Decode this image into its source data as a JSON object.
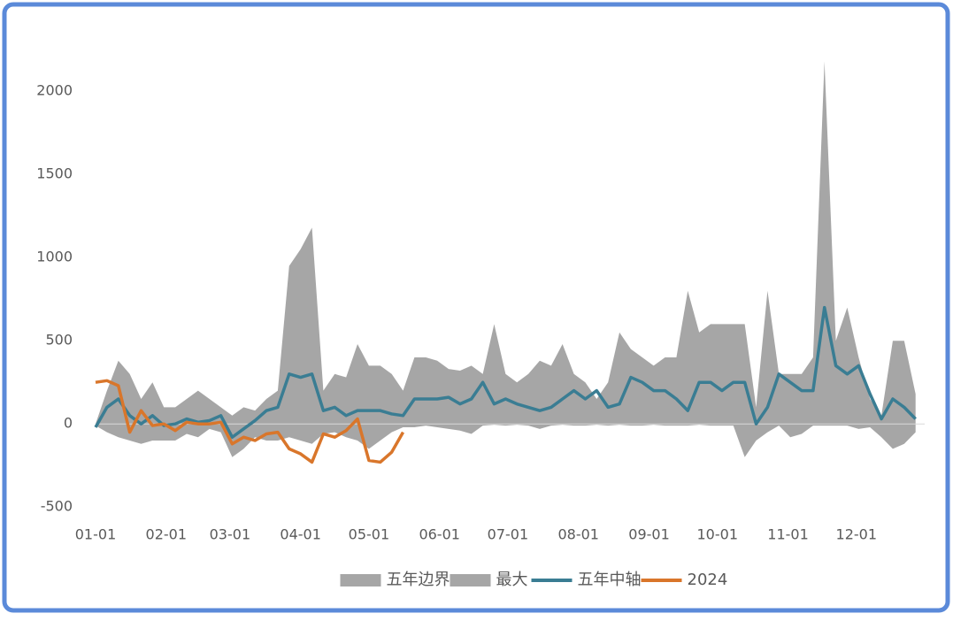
{
  "chart_data": {
    "type": "area-line",
    "x": [
      0,
      5,
      10,
      15,
      20,
      25,
      30,
      35,
      40,
      45,
      50,
      55,
      60,
      65,
      70,
      75,
      80,
      85,
      90,
      95,
      100,
      105,
      110,
      115,
      120,
      125,
      130,
      135,
      140,
      145,
      150,
      155,
      160,
      165,
      170,
      175,
      180,
      185,
      190,
      195,
      200,
      205,
      210,
      215,
      220,
      225,
      230,
      235,
      240,
      245,
      250,
      255,
      260,
      265,
      270,
      275,
      280,
      285,
      290,
      295,
      300,
      305,
      310,
      315,
      320,
      325,
      330,
      335,
      340,
      345,
      350,
      355,
      360
    ],
    "xlim": [
      0,
      364
    ],
    "xticks": [
      {
        "value": 0,
        "label": "01-01"
      },
      {
        "value": 31,
        "label": "02-01"
      },
      {
        "value": 59,
        "label": "03-01"
      },
      {
        "value": 90,
        "label": "04-01"
      },
      {
        "value": 120,
        "label": "05-01"
      },
      {
        "value": 151,
        "label": "06-01"
      },
      {
        "value": 181,
        "label": "07-01"
      },
      {
        "value": 212,
        "label": "08-01"
      },
      {
        "value": 243,
        "label": "09-01"
      },
      {
        "value": 273,
        "label": "10-01"
      },
      {
        "value": 304,
        "label": "11-01"
      },
      {
        "value": 334,
        "label": "12-01"
      }
    ],
    "ylim": [
      -600,
      2400
    ],
    "yticks": [
      -500,
      0,
      500,
      1000,
      1500,
      2000
    ],
    "legend": "bottom",
    "series": [
      {
        "name": "五年边界",
        "kind": "area",
        "color": "#a6a6a6",
        "values": [
          -10,
          -50,
          -80,
          -100,
          -120,
          -100,
          -100,
          -100,
          -60,
          -80,
          -30,
          -50,
          -200,
          -150,
          -80,
          -100,
          -100,
          -80,
          -100,
          -120,
          -60,
          -50,
          -80,
          -100,
          -150,
          -100,
          -50,
          -20,
          -20,
          -10,
          -20,
          -30,
          -40,
          -60,
          -10,
          -5,
          -10,
          -5,
          -10,
          -30,
          -10,
          -5,
          -10,
          -10,
          -5,
          -10,
          -5,
          -10,
          -10,
          -5,
          -10,
          -10,
          -10,
          -5,
          -10,
          -10,
          -10,
          -200,
          -100,
          -50,
          -10,
          -80,
          -60,
          -10,
          -10,
          -10,
          -10,
          -30,
          -20,
          -80,
          -150,
          -120,
          -50
        ]
      },
      {
        "name": "最大",
        "kind": "area",
        "color": "#a6a6a6",
        "values": [
          0,
          200,
          380,
          300,
          150,
          250,
          100,
          100,
          150,
          200,
          150,
          100,
          50,
          100,
          80,
          150,
          200,
          950,
          1050,
          1180,
          200,
          300,
          280,
          480,
          350,
          350,
          300,
          200,
          400,
          400,
          380,
          330,
          320,
          350,
          300,
          600,
          300,
          250,
          300,
          380,
          350,
          480,
          300,
          250,
          150,
          250,
          550,
          450,
          400,
          350,
          400,
          400,
          800,
          550,
          600,
          600,
          600,
          600,
          100,
          800,
          300,
          300,
          300,
          400,
          2180,
          500,
          700,
          400,
          150,
          50,
          500,
          500,
          180
        ]
      },
      {
        "name": "五年中轴",
        "kind": "line",
        "color": "#3a7d93",
        "values": [
          -20,
          100,
          150,
          50,
          0,
          50,
          -10,
          0,
          30,
          10,
          20,
          50,
          -80,
          -30,
          20,
          80,
          100,
          300,
          280,
          300,
          80,
          100,
          50,
          80,
          80,
          80,
          60,
          50,
          150,
          150,
          150,
          160,
          120,
          150,
          250,
          120,
          150,
          120,
          100,
          80,
          100,
          150,
          200,
          150,
          200,
          100,
          120,
          280,
          250,
          200,
          200,
          150,
          80,
          250,
          250,
          200,
          250,
          250,
          0,
          100,
          300,
          250,
          200,
          200,
          700,
          350,
          300,
          350,
          180,
          30,
          150,
          100,
          30
        ]
      },
      {
        "name": "2024",
        "kind": "line",
        "color": "#d9762b",
        "values": [
          250,
          260,
          230,
          -50,
          80,
          -10,
          0,
          -40,
          10,
          0,
          0,
          10,
          -120,
          -80,
          -100,
          -60,
          -50,
          -150,
          -180,
          -230,
          -60,
          -80,
          -40,
          30,
          -220,
          -230,
          -170,
          -50,
          null,
          null,
          null,
          null,
          null,
          null,
          null,
          null,
          null,
          null,
          null,
          null,
          null,
          null,
          null,
          null,
          null,
          null,
          null,
          null,
          null,
          null,
          null,
          null,
          null,
          null,
          null,
          null,
          null,
          null,
          null,
          null,
          null,
          null,
          null,
          null,
          null,
          null,
          null,
          null,
          null,
          null,
          null,
          null,
          null
        ]
      }
    ]
  }
}
